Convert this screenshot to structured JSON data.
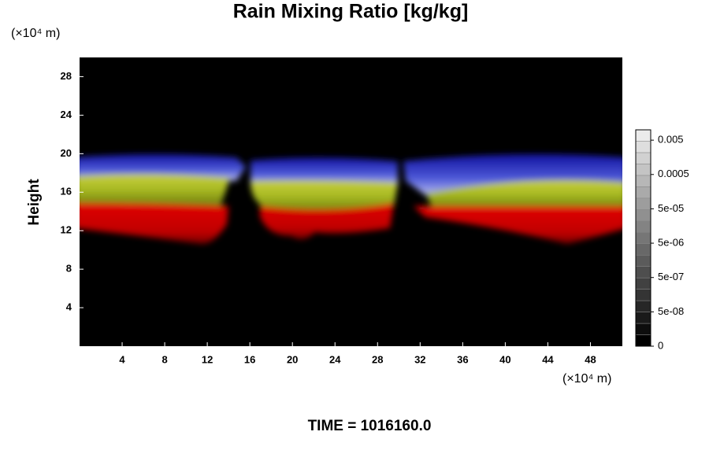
{
  "chart_data": {
    "type": "heatmap",
    "title": "Rain Mixing Ratio [kg/kg]",
    "y_unit": "(×10⁴ m)",
    "x_unit": "(×10⁴ m)",
    "ylabel": "Height",
    "xlim": [
      0,
      51
    ],
    "xticks": [
      4,
      8,
      12,
      16,
      20,
      24,
      28,
      32,
      36,
      40,
      44,
      48
    ],
    "ylim": [
      0,
      30
    ],
    "yticks": [
      4,
      8,
      12,
      16,
      20,
      24,
      28
    ],
    "colorbar_scale": "log",
    "clim": [
      5e-09,
      0.01
    ],
    "colorbar_ticks": [
      0.005,
      {
        "value": 0.0005,
        "label": "0.0005"
      },
      {
        "value": 5e-05,
        "label": "5e-05"
      },
      {
        "value": 5e-06,
        "label": "5e-06"
      },
      {
        "value": 5e-07,
        "label": "5e-07"
      },
      {
        "value": 5e-08,
        "label": "5e-08"
      },
      0
    ],
    "annotation": "TIME = 1016160.0"
  }
}
